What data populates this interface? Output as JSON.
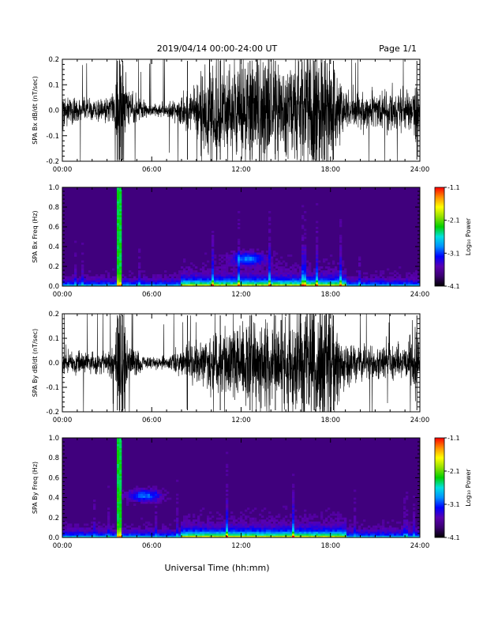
{
  "header": {
    "title": "2019/04/14  00:00-24:00 UT",
    "page": "Page 1/1"
  },
  "footer": {
    "xlabel": "Universal Time (hh:mm)"
  },
  "colors": {
    "colormap": [
      "#000000",
      "#3a0070",
      "#5a00b0",
      "#0000ff",
      "#0090ff",
      "#00e0e0",
      "#00d000",
      "#90e000",
      "#ffff00",
      "#ff9000",
      "#ff0000"
    ]
  },
  "chart_data": [
    {
      "type": "line",
      "ylabel": "SPA Bx dB/dt (nT/sec)",
      "xlim": [
        0,
        24
      ],
      "ylim": [
        -0.2,
        0.2
      ],
      "xticks": [
        "00:00",
        "06:00",
        "12:00",
        "18:00",
        "24:00"
      ],
      "yticks": [
        "-0.2",
        "-0.1",
        "0.0",
        "0.1",
        "0.2"
      ],
      "amplitude_envelope": {
        "x_hours": [
          0,
          1,
          2,
          3,
          3.5,
          3.8,
          4.1,
          4.4,
          5,
          6,
          7,
          7.5,
          8,
          9,
          9.5,
          10,
          11,
          12,
          13,
          13.5,
          14,
          15,
          16,
          17,
          17.5,
          18,
          18.5,
          19,
          20,
          21,
          22,
          23,
          23.7,
          24
        ],
        "amplitude": [
          0.06,
          0.04,
          0.035,
          0.04,
          0.05,
          0.25,
          0.2,
          0.08,
          0.04,
          0.02,
          0.025,
          0.04,
          0.05,
          0.1,
          0.15,
          0.22,
          0.18,
          0.16,
          0.2,
          0.22,
          0.17,
          0.16,
          0.2,
          0.24,
          0.25,
          0.2,
          0.12,
          0.08,
          0.06,
          0.06,
          0.07,
          0.06,
          0.1,
          0.06
        ]
      }
    },
    {
      "type": "heatmap",
      "ylabel": "SPA Bx Freq (Hz)",
      "xlim": [
        0,
        24
      ],
      "ylim": [
        0,
        1
      ],
      "xticks": [
        "00:00",
        "06:00",
        "12:00",
        "18:00",
        "24:00"
      ],
      "yticks": [
        "0.0",
        "0.2",
        "0.4",
        "0.6",
        "0.8",
        "1.0"
      ],
      "colorbar_label": "Log₁₀ Power",
      "colorbar_ticks": [
        "-1.1",
        "-2.1",
        "-3.1",
        "-4.1"
      ],
      "zlim": [
        -4.1,
        -1.1
      ],
      "features": {
        "bright_column_hours": [
          3.8
        ],
        "active_band_hours": [
          8,
          19
        ],
        "blob": {
          "x_hours": 12.5,
          "freq_hz": 0.28
        }
      }
    },
    {
      "type": "line",
      "ylabel": "SPA By dB/dt (nT/sec)",
      "xlim": [
        0,
        24
      ],
      "ylim": [
        -0.2,
        0.2
      ],
      "xticks": [
        "00:00",
        "06:00",
        "12:00",
        "18:00",
        "24:00"
      ],
      "yticks": [
        "-0.2",
        "-0.1",
        "0.0",
        "0.1",
        "0.2"
      ],
      "amplitude_envelope": {
        "x_hours": [
          0,
          1,
          2,
          3,
          3.5,
          3.8,
          4.1,
          4.4,
          5,
          6,
          7,
          7.5,
          8,
          9,
          10,
          11,
          12,
          13,
          14,
          15,
          16,
          17,
          17.5,
          18,
          18.5,
          19,
          20,
          21,
          22,
          23,
          23.7,
          24
        ],
        "amplitude": [
          0.05,
          0.04,
          0.035,
          0.04,
          0.05,
          0.25,
          0.2,
          0.08,
          0.04,
          0.02,
          0.025,
          0.04,
          0.05,
          0.07,
          0.1,
          0.12,
          0.12,
          0.16,
          0.15,
          0.17,
          0.2,
          0.25,
          0.25,
          0.2,
          0.12,
          0.08,
          0.06,
          0.06,
          0.07,
          0.06,
          0.12,
          0.06
        ]
      }
    },
    {
      "type": "heatmap",
      "ylabel": "SPA By Freq (Hz)",
      "xlim": [
        0,
        24
      ],
      "ylim": [
        0,
        1
      ],
      "xticks": [
        "00:00",
        "06:00",
        "12:00",
        "18:00",
        "24:00"
      ],
      "yticks": [
        "0.0",
        "0.2",
        "0.4",
        "0.6",
        "0.8",
        "1.0"
      ],
      "colorbar_label": "Log₁₀ Power",
      "colorbar_ticks": [
        "-1.1",
        "-2.1",
        "-3.1",
        "-4.1"
      ],
      "zlim": [
        -4.1,
        -1.1
      ],
      "features": {
        "bright_column_hours": [
          3.8
        ],
        "active_band_hours": [
          8,
          19
        ],
        "blob": {
          "x_hours": 5.5,
          "freq_hz": 0.42
        }
      }
    }
  ]
}
